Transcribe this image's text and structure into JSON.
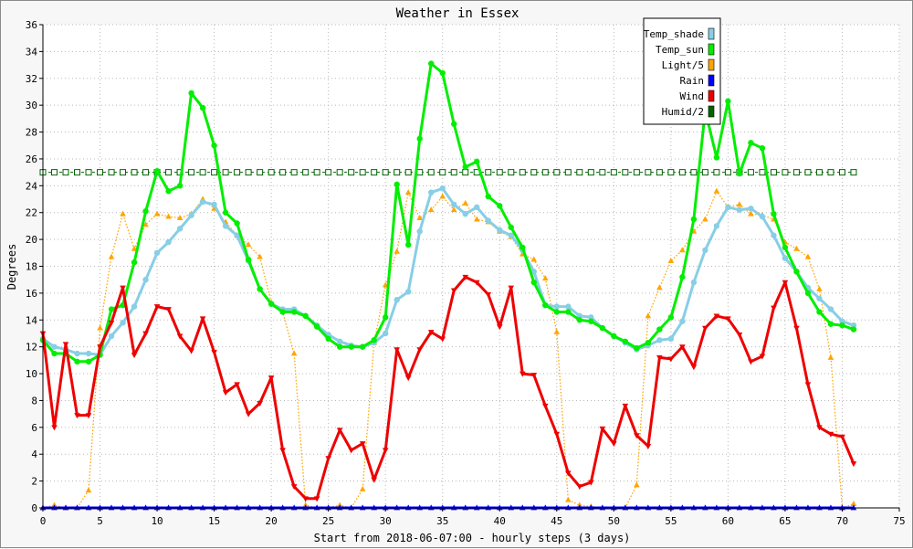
{
  "chart_data": {
    "type": "line",
    "title": "Weather in Essex",
    "xlabel": "Start from 2018-06-07:00 - hourly steps (3 days)",
    "ylabel": "Degrees",
    "xlim": [
      0,
      75
    ],
    "ylim": [
      0,
      36
    ],
    "x_ticks": [
      "0",
      "5",
      "10",
      "15",
      "20",
      "25",
      "30",
      "35",
      "40",
      "45",
      "50",
      "55",
      "60",
      "65",
      "70",
      "75"
    ],
    "y_ticks": [
      "0",
      "2",
      "4",
      "6",
      "8",
      "10",
      "12",
      "14",
      "16",
      "18",
      "20",
      "22",
      "24",
      "26",
      "28",
      "30",
      "32",
      "34",
      "36"
    ],
    "grid": true,
    "legend_position": "top-right",
    "series": [
      {
        "name": "Temp_shade",
        "color": "#87cee6",
        "line_style": "solid",
        "marker": "circle",
        "values": [
          12.6,
          12.0,
          11.8,
          11.5,
          11.5,
          11.4,
          12.8,
          13.8,
          15.0,
          17.0,
          19.0,
          19.8,
          20.8,
          21.8,
          22.8,
          22.6,
          21.0,
          20.3,
          18.4,
          16.3,
          15.2,
          14.8,
          14.8,
          14.3,
          13.6,
          12.9,
          12.4,
          12.1,
          12.0,
          12.3,
          13.0,
          15.5,
          16.1,
          20.6,
          23.5,
          23.8,
          22.6,
          21.9,
          22.4,
          21.4,
          20.7,
          20.3,
          19.2,
          17.6,
          15.1,
          15.0,
          15.0,
          14.3,
          14.2,
          13.4,
          12.8,
          12.3,
          11.8,
          12.1,
          12.5,
          12.6,
          13.9,
          16.8,
          19.2,
          21.0,
          22.4,
          22.2,
          22.3,
          21.7,
          20.3,
          18.6,
          17.6,
          16.4,
          15.6,
          14.8,
          13.9,
          13.6
        ]
      },
      {
        "name": "Temp_sun",
        "color": "#00ee00",
        "line_style": "solid",
        "marker": "circle",
        "values": [
          12.5,
          11.5,
          11.5,
          10.9,
          10.9,
          11.4,
          14.8,
          15.1,
          18.3,
          22.1,
          25.1,
          23.6,
          24.0,
          30.9,
          29.8,
          27.0,
          22.0,
          21.2,
          18.5,
          16.3,
          15.2,
          14.6,
          14.6,
          14.3,
          13.5,
          12.6,
          12.0,
          12.0,
          12.0,
          12.5,
          14.2,
          24.1,
          19.6,
          27.5,
          33.1,
          32.4,
          28.6,
          25.4,
          25.8,
          23.2,
          22.5,
          20.9,
          19.4,
          16.8,
          15.1,
          14.6,
          14.6,
          14.0,
          13.9,
          13.4,
          12.8,
          12.4,
          11.9,
          12.3,
          13.3,
          14.2,
          17.2,
          21.5,
          29.6,
          26.1,
          30.3,
          24.9,
          27.2,
          26.8,
          21.9,
          19.4,
          17.6,
          16.0,
          14.6,
          13.7,
          13.6,
          13.3
        ]
      },
      {
        "name": "Light/5",
        "color": "#ffa500",
        "line_style": "dotted",
        "marker": "triangle-up",
        "values": [
          0.0,
          0.2,
          0.0,
          0.0,
          1.3,
          13.4,
          18.7,
          21.9,
          19.3,
          21.1,
          21.9,
          21.7,
          21.6,
          21.9,
          23.0,
          22.3,
          21.3,
          20.3,
          19.6,
          18.7,
          15.3,
          14.6,
          11.5,
          0.2,
          0.0,
          0.0,
          0.2,
          0.0,
          1.4,
          12.3,
          16.6,
          19.1,
          23.5,
          21.6,
          22.2,
          23.2,
          22.2,
          22.7,
          21.5,
          21.3,
          20.6,
          20.2,
          18.9,
          18.5,
          17.1,
          13.1,
          0.6,
          0.2,
          0.1,
          0.0,
          0.0,
          0.0,
          1.7,
          14.3,
          16.4,
          18.4,
          19.2,
          20.6,
          21.5,
          23.6,
          22.4,
          22.6,
          21.9,
          21.8,
          21.5,
          19.8,
          19.3,
          18.7,
          16.3,
          11.2,
          0.0,
          0.3
        ]
      },
      {
        "name": "Rain",
        "color": "#0000ff",
        "line_style": "solid",
        "marker": "triangle-up",
        "values": [
          0,
          0,
          0,
          0,
          0,
          0,
          0,
          0,
          0,
          0,
          0,
          0,
          0,
          0,
          0,
          0,
          0,
          0,
          0,
          0,
          0,
          0,
          0,
          0,
          0,
          0,
          0,
          0,
          0,
          0,
          0,
          0,
          0,
          0,
          0,
          0,
          0,
          0,
          0,
          0,
          0,
          0,
          0,
          0,
          0,
          0,
          0,
          0,
          0,
          0,
          0,
          0,
          0,
          0,
          0,
          0,
          0,
          0,
          0,
          0,
          0,
          0,
          0,
          0,
          0,
          0,
          0,
          0,
          0,
          0,
          0,
          0
        ]
      },
      {
        "name": "Wind",
        "color": "#ee0000",
        "line_style": "solid",
        "marker": "triangle-down",
        "values": [
          13.0,
          6.0,
          12.2,
          6.9,
          6.9,
          12.0,
          13.8,
          16.4,
          11.4,
          13.0,
          15.0,
          14.8,
          12.8,
          11.7,
          14.1,
          11.6,
          8.6,
          9.2,
          7.0,
          7.8,
          9.7,
          4.3,
          1.6,
          0.7,
          0.7,
          3.7,
          5.8,
          4.3,
          4.8,
          2.1,
          4.3,
          11.8,
          9.7,
          11.8,
          13.1,
          12.6,
          16.2,
          17.2,
          16.8,
          15.9,
          13.5,
          16.4,
          10.0,
          9.9,
          7.6,
          5.5,
          2.6,
          1.6,
          1.9,
          5.9,
          4.8,
          7.6,
          5.4,
          4.6,
          11.2,
          11.1,
          12.0,
          10.5,
          13.4,
          14.3,
          14.1,
          12.9,
          10.9,
          11.3,
          14.9,
          16.8,
          13.4,
          9.2,
          6.0,
          5.5,
          5.3,
          3.3
        ]
      },
      {
        "name": "Humid/2",
        "color": "#006400",
        "line_style": "dashed",
        "marker": "square",
        "values": [
          25,
          25,
          25,
          25,
          25,
          25,
          25,
          25,
          25,
          25,
          25,
          25,
          25,
          25,
          25,
          25,
          25,
          25,
          25,
          25,
          25,
          25,
          25,
          25,
          25,
          25,
          25,
          25,
          25,
          25,
          25,
          25,
          25,
          25,
          25,
          25,
          25,
          25,
          25,
          25,
          25,
          25,
          25,
          25,
          25,
          25,
          25,
          25,
          25,
          25,
          25,
          25,
          25,
          25,
          25,
          25,
          25,
          25,
          25,
          25,
          25,
          25,
          25,
          25,
          25,
          25,
          25,
          25,
          25,
          25,
          25,
          25
        ]
      }
    ]
  }
}
